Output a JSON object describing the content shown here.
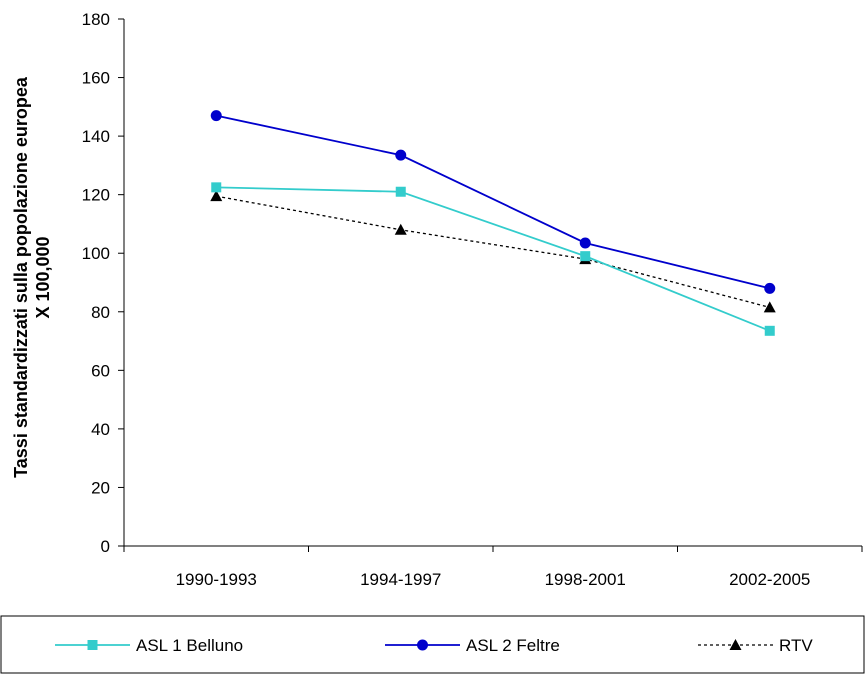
{
  "chart_data": {
    "type": "line",
    "categories": [
      "1990-1993",
      "1994-1997",
      "1998-2001",
      "2002-2005"
    ],
    "ylim": [
      0,
      180
    ],
    "yticks": [
      0,
      20,
      40,
      60,
      80,
      100,
      120,
      140,
      160,
      180
    ],
    "ylabel_lines": [
      "Tassi standardizzati sulla popolazione europea",
      "X 100,000"
    ],
    "grid": false,
    "legend_position": "bottom",
    "series": [
      {
        "name": "ASL 1 Belluno",
        "values": [
          122.5,
          121,
          99,
          73.5
        ],
        "color": "#33CCCC",
        "marker": "square",
        "dash": "solid"
      },
      {
        "name": "ASL 2 Feltre",
        "values": [
          147,
          133.5,
          103.5,
          88
        ],
        "color": "#0000CC",
        "marker": "circle",
        "dash": "solid"
      },
      {
        "name": "RTV",
        "values": [
          119.5,
          108,
          98,
          81.5
        ],
        "color": "#000000",
        "marker": "triangle",
        "dash": "dotted"
      }
    ]
  }
}
